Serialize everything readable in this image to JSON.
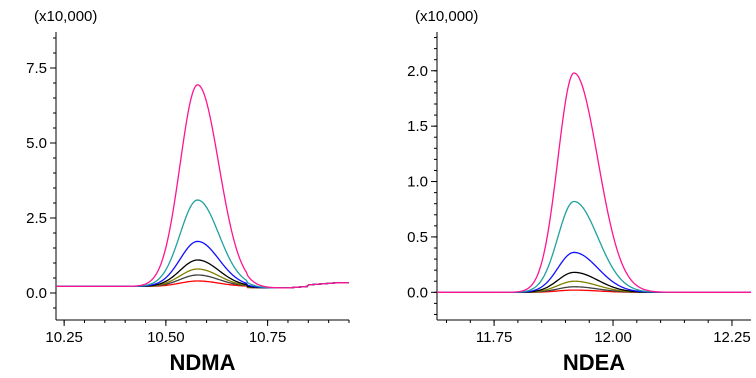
{
  "chart_data": [
    {
      "type": "line",
      "scale_note": "(x10,000)",
      "xlabel": "NDMA",
      "xlim": [
        10.23,
        10.95
      ],
      "ylim": [
        -0.9,
        8.7
      ],
      "x_ticks": [
        10.25,
        10.5,
        10.75
      ],
      "x_tick_labels": [
        "10.25",
        "10.50",
        "10.75"
      ],
      "y_ticks": [
        0.0,
        2.5,
        5.0,
        7.5
      ],
      "y_tick_labels": [
        "0.0",
        "2.5",
        "5.0",
        "7.5"
      ],
      "peak_x": 10.578,
      "series": [
        {
          "color": "#ff1493",
          "peak_height": 6.72
        },
        {
          "color": "#20a0a0",
          "peak_height": 2.88
        },
        {
          "color": "#1010ff",
          "peak_height": 1.5
        },
        {
          "color": "#000000",
          "peak_height": 0.88
        },
        {
          "color": "#808000",
          "peak_height": 0.58
        },
        {
          "color": "#404040",
          "peak_height": 0.38
        },
        {
          "color": "#ff0000",
          "peak_height": 0.18
        }
      ]
    },
    {
      "type": "line",
      "scale_note": "(x10,000)",
      "xlabel": "NDEA",
      "xlim": [
        11.63,
        12.29
      ],
      "ylim": [
        -0.25,
        2.35
      ],
      "x_ticks": [
        11.75,
        12.0,
        12.25
      ],
      "x_tick_labels": [
        "11.75",
        "12.00",
        "12.25"
      ],
      "y_ticks": [
        0.0,
        0.5,
        1.0,
        1.5,
        2.0
      ],
      "y_tick_labels": [
        "0.0",
        "0.5",
        "1.0",
        "1.5",
        "2.0"
      ],
      "peak_x": 11.918,
      "series": [
        {
          "color": "#ff1493",
          "peak_height": 1.98
        },
        {
          "color": "#20a0a0",
          "peak_height": 0.82
        },
        {
          "color": "#1010ff",
          "peak_height": 0.36
        },
        {
          "color": "#000000",
          "peak_height": 0.18
        },
        {
          "color": "#808000",
          "peak_height": 0.1
        },
        {
          "color": "#404040",
          "peak_height": 0.05
        },
        {
          "color": "#ff0000",
          "peak_height": 0.02
        }
      ]
    }
  ]
}
